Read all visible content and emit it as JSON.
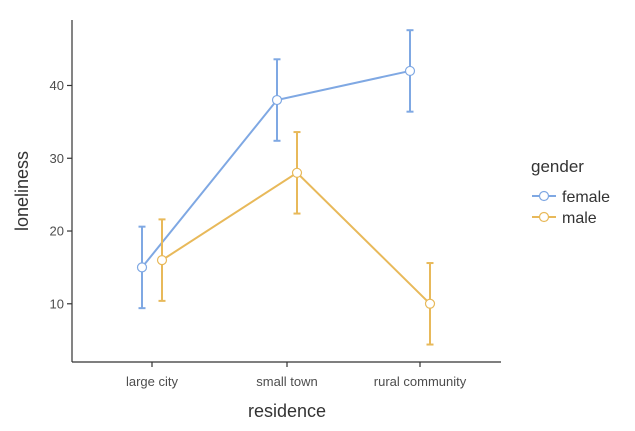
{
  "chart_data": {
    "type": "line",
    "xlabel": "residence",
    "ylabel": "loneliness",
    "categories": [
      "large city",
      "small town",
      "rural community"
    ],
    "ylim": [
      2,
      49
    ],
    "yticks": [
      10,
      20,
      30,
      40
    ],
    "grid": false,
    "legend": {
      "title": "gender",
      "position": "right"
    },
    "series": [
      {
        "name": "female",
        "color": "#7FA8E3",
        "values": [
          15,
          38,
          42
        ],
        "error_low": [
          9.4,
          32.4,
          36.4
        ],
        "error_high": [
          20.6,
          43.6,
          47.6
        ]
      },
      {
        "name": "male",
        "color": "#E8B95A",
        "values": [
          16,
          28,
          10
        ],
        "error_low": [
          10.4,
          22.4,
          4.4
        ],
        "error_high": [
          21.6,
          33.6,
          15.6
        ]
      }
    ]
  }
}
